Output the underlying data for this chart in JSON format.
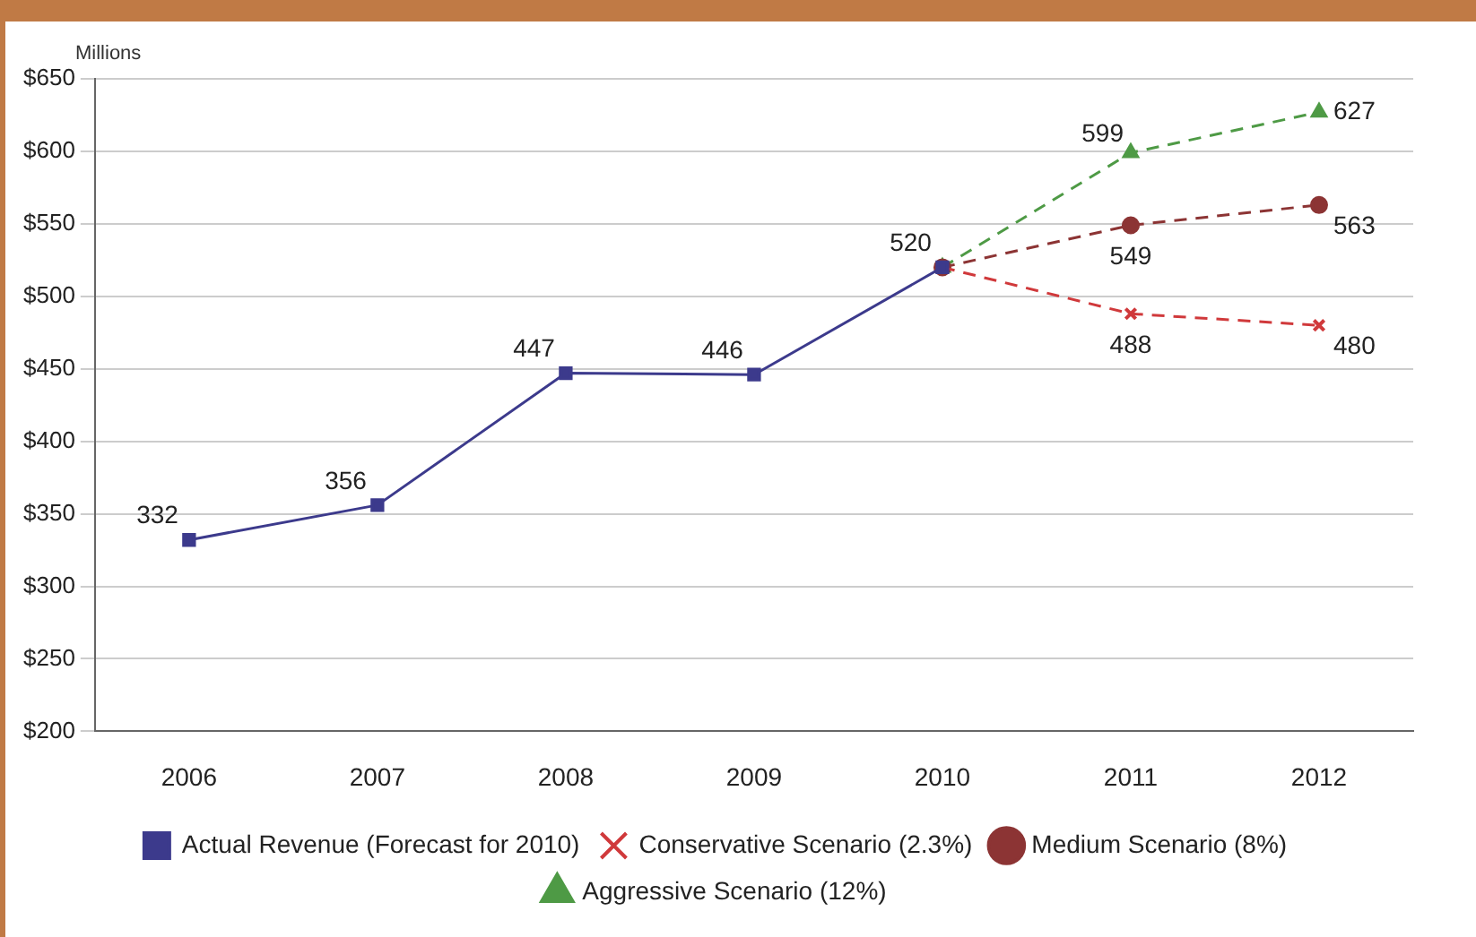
{
  "chart_data": {
    "type": "line",
    "ylabel": "Millions",
    "categories": [
      "2006",
      "2007",
      "2008",
      "2009",
      "2010",
      "2011",
      "2012"
    ],
    "series": [
      {
        "name": "Actual Revenue (Forecast for 2010)",
        "color": "#3c3a8c",
        "marker": "square",
        "line_style": "solid",
        "values": [
          332,
          356,
          447,
          446,
          520,
          null,
          null
        ],
        "value_labels": [
          "332",
          "356",
          "447",
          "446",
          "520",
          null,
          null
        ]
      },
      {
        "name": "Conservative Scenario (2.3%)",
        "color": "#d0393b",
        "marker": "cross",
        "line_style": "dashed",
        "values": [
          null,
          null,
          null,
          null,
          520,
          488,
          480
        ],
        "value_labels": [
          null,
          null,
          null,
          null,
          null,
          "488",
          "480"
        ]
      },
      {
        "name": "Medium Scenario (8%)",
        "color": "#8c3434",
        "marker": "circle",
        "line_style": "dashed",
        "values": [
          null,
          null,
          null,
          null,
          520,
          549,
          563
        ],
        "value_labels": [
          null,
          null,
          null,
          null,
          null,
          "549",
          "563"
        ]
      },
      {
        "name": "Aggressive Scenario (12%)",
        "color": "#4e9a45",
        "marker": "triangle",
        "line_style": "dashed",
        "values": [
          null,
          null,
          null,
          null,
          520,
          599,
          627
        ],
        "value_labels": [
          null,
          null,
          null,
          null,
          null,
          "599",
          "627"
        ]
      }
    ],
    "ylim": [
      200,
      650
    ],
    "yticks": [
      {
        "value": 200,
        "label": "$200"
      },
      {
        "value": 250,
        "label": "$250"
      },
      {
        "value": 300,
        "label": "$300"
      },
      {
        "value": 350,
        "label": "$350"
      },
      {
        "value": 400,
        "label": "$400"
      },
      {
        "value": 450,
        "label": "$450"
      },
      {
        "value": 500,
        "label": "$500"
      },
      {
        "value": 550,
        "label": "$550"
      },
      {
        "value": 600,
        "label": "$600"
      },
      {
        "value": 650,
        "label": "$650"
      }
    ],
    "grid": "y",
    "legend": "bottom"
  }
}
